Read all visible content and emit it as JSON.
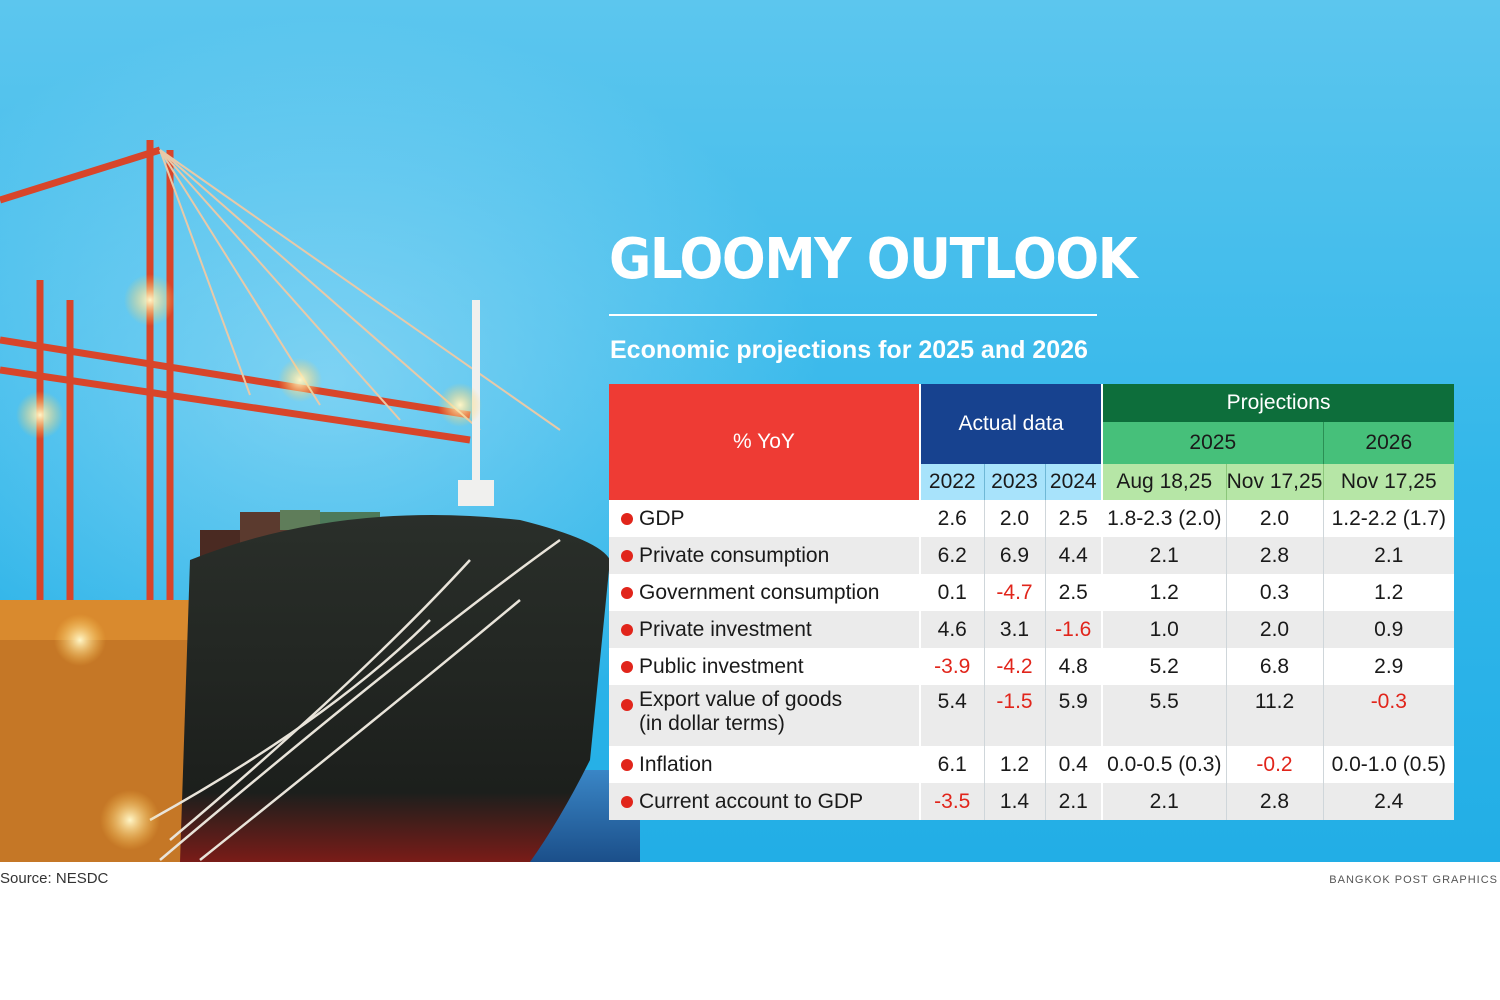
{
  "title": "GLOOMY OUTLOOK",
  "subtitle": "Economic projections for 2025 and 2026",
  "source": "Source: NESDC",
  "credit": "BANGKOK POST GRAPHICS",
  "colors": {
    "background": "#22aee6",
    "label_header": "#ee3b34",
    "actual_header": "#17428f",
    "projections_header": "#0d6e3b",
    "year_header": "#46c07a",
    "negative_value": "#e1251b"
  },
  "chart_data": {
    "type": "table",
    "title": "GLOOMY OUTLOOK",
    "subtitle": "Economic projections for 2025 and 2026",
    "unit_label": "% YoY",
    "header": {
      "actual": "Actual data",
      "projections": "Projections",
      "year_2025": "2025",
      "year_2026": "2026"
    },
    "columns": [
      "2022",
      "2023",
      "2024",
      "Aug 18,25",
      "Nov 17,25",
      "Nov 17,25"
    ],
    "rows": [
      {
        "label": "GDP",
        "values": [
          "2.6",
          "2.0",
          "2.5",
          "1.8-2.3 (2.0)",
          "2.0",
          "1.2-2.2 (1.7)"
        ]
      },
      {
        "label": "Private consumption",
        "values": [
          "6.2",
          "6.9",
          "4.4",
          "2.1",
          "2.8",
          "2.1"
        ]
      },
      {
        "label": "Government consumption",
        "values": [
          "0.1",
          "-4.7",
          "2.5",
          "1.2",
          "0.3",
          "1.2"
        ]
      },
      {
        "label": "Private investment",
        "values": [
          "4.6",
          "3.1",
          "-1.6",
          "1.0",
          "2.0",
          "0.9"
        ]
      },
      {
        "label": "Public investment",
        "values": [
          "-3.9",
          "-4.2",
          "4.8",
          "5.2",
          "6.8",
          "2.9"
        ]
      },
      {
        "label": "Export value of goods",
        "label_line2": "(in dollar terms)",
        "values": [
          "5.4",
          "-1.5",
          "5.9",
          "5.5",
          "11.2",
          "-0.3"
        ]
      },
      {
        "label": "Inflation",
        "values": [
          "6.1",
          "1.2",
          "0.4",
          "0.0-0.5 (0.3)",
          "-0.2",
          "0.0-1.0 (0.5)"
        ]
      },
      {
        "label": "Current account to GDP",
        "values": [
          "-3.5",
          "1.4",
          "2.1",
          "2.1",
          "2.8",
          "2.4"
        ]
      }
    ]
  }
}
